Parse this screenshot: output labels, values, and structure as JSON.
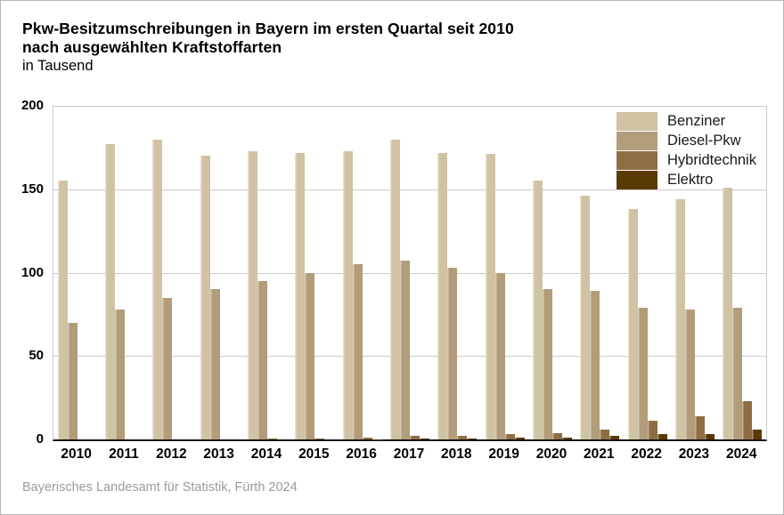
{
  "header": {
    "title_line1": "Pkw-Besitzumschreibungen in Bayern im ersten Quartal seit 2010",
    "title_line2": "nach ausgewählten Kraftstoffarten",
    "subtitle": "in Tausend"
  },
  "footer": {
    "source": "Bayerisches Landesamt für Statistik, Fürth 2024"
  },
  "colors": {
    "benziner": "#cfc3a3",
    "diesel": "#b29c79",
    "hybrid": "#8f6d44",
    "elektro": "#5a3a04",
    "grid": "#cbcbcb",
    "axis": "#161616"
  },
  "chart_data": {
    "type": "bar",
    "title": "Pkw-Besitzumschreibungen in Bayern im ersten Quartal seit 2010 nach ausgewählten Kraftstoffarten",
    "unit_label": "in Tausend",
    "categories": [
      "2010",
      "2011",
      "2012",
      "2013",
      "2014",
      "2015",
      "2016",
      "2017",
      "2018",
      "2019",
      "2020",
      "2021",
      "2022",
      "2023",
      "2024"
    ],
    "series": [
      {
        "name": "Benziner",
        "color": "#cfc3a3",
        "values": [
          155,
          177,
          180,
          170,
          173,
          172,
          173,
          180,
          172,
          171,
          155,
          146,
          138,
          144,
          151
        ]
      },
      {
        "name": "Diesel-Pkw",
        "color": "#b29c79",
        "values": [
          70,
          78,
          85,
          90,
          95,
          100,
          105,
          107,
          103,
          100,
          90,
          89,
          79,
          78,
          79
        ]
      },
      {
        "name": "Hybridtechnik",
        "color": "#8f6d44",
        "values": [
          0,
          0,
          0,
          0,
          0.3,
          0.5,
          1,
          2,
          2,
          3,
          4,
          6,
          11,
          14,
          23
        ]
      },
      {
        "name": "Elektro",
        "color": "#5a3a04",
        "values": [
          0,
          0,
          0,
          0,
          0,
          0,
          0.2,
          0.4,
          0.5,
          1,
          1,
          2,
          3,
          3,
          6
        ]
      }
    ],
    "xlabel": "",
    "ylabel": "in Tausend",
    "ylim": [
      0,
      200
    ],
    "yticks": [
      0,
      50,
      100,
      150,
      200
    ],
    "grid": true,
    "legend_position": "top-right"
  }
}
